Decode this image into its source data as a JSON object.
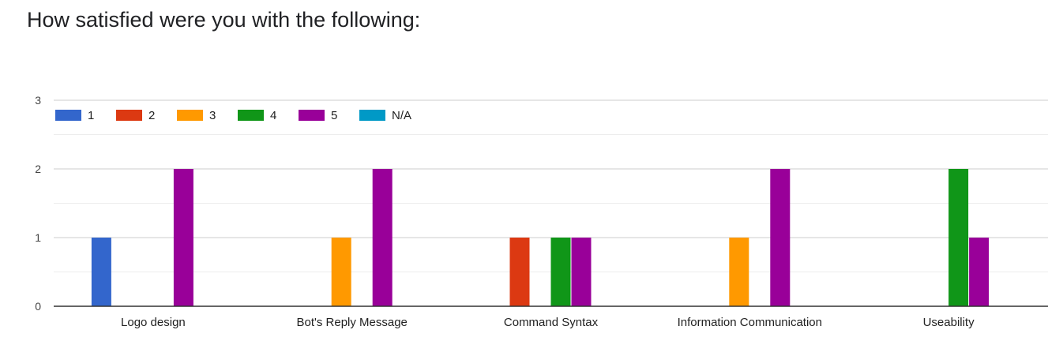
{
  "question": "How satisfied were you with the following:",
  "chart_data": {
    "type": "bar",
    "categories": [
      "Logo design",
      "Bot's Reply Message",
      "Command Syntax",
      "Information Communication",
      "Useability"
    ],
    "series": [
      {
        "name": "1",
        "color": "#3366cc",
        "values": [
          1,
          0,
          0,
          0,
          0
        ]
      },
      {
        "name": "2",
        "color": "#dc3912",
        "values": [
          0,
          0,
          1,
          0,
          0
        ]
      },
      {
        "name": "3",
        "color": "#ff9900",
        "values": [
          0,
          1,
          0,
          1,
          0
        ]
      },
      {
        "name": "4",
        "color": "#109618",
        "values": [
          0,
          0,
          1,
          0,
          2
        ]
      },
      {
        "name": "5",
        "color": "#990099",
        "values": [
          2,
          2,
          1,
          2,
          1
        ]
      },
      {
        "name": "N/A",
        "color": "#0099c6",
        "values": [
          0,
          0,
          0,
          0,
          0
        ]
      }
    ],
    "y_ticks": [
      "0",
      "1",
      "2",
      "3"
    ],
    "ylim": [
      0,
      3
    ],
    "grid": true,
    "legend_position": "top-left"
  }
}
